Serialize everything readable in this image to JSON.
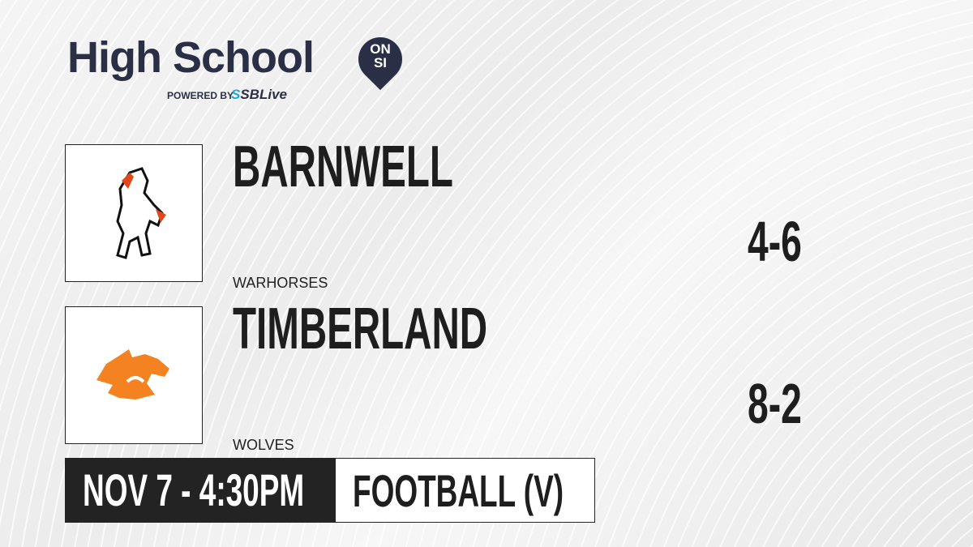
{
  "brand": {
    "title": "High School",
    "badge_top": "ON",
    "badge_bottom": "SI",
    "powered_by": "POWERED BY",
    "partner_s": "S",
    "partner": "SBLive",
    "color": "#2b2f45",
    "partner_color": "#1fa8e0"
  },
  "teams": [
    {
      "name": "BARNWELL",
      "mascot": "WARHORSES",
      "record": "4-6",
      "logo_icon": "warhorse-logo"
    },
    {
      "name": "TIMBERLAND",
      "mascot": "WOLVES",
      "record": "8-2",
      "logo_icon": "wolf-logo",
      "logo_color": "#f58220"
    }
  ],
  "game": {
    "datetime": "NOV 7 - 4:30PM",
    "sport": "FOOTBALL (V)"
  }
}
